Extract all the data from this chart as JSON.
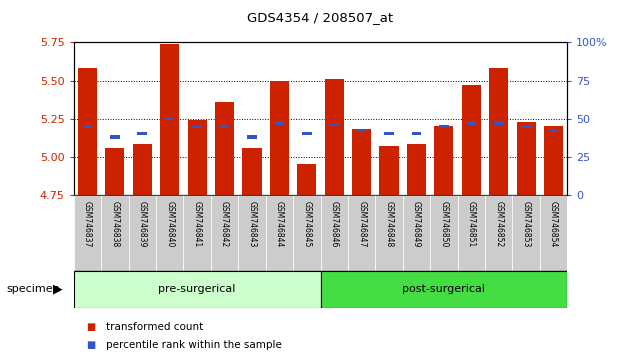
{
  "title": "GDS4354 / 208507_at",
  "samples": [
    "GSM746837",
    "GSM746838",
    "GSM746839",
    "GSM746840",
    "GSM746841",
    "GSM746842",
    "GSM746843",
    "GSM746844",
    "GSM746845",
    "GSM746846",
    "GSM746847",
    "GSM746848",
    "GSM746849",
    "GSM746850",
    "GSM746851",
    "GSM746852",
    "GSM746853",
    "GSM746854"
  ],
  "red_values": [
    5.58,
    5.06,
    5.08,
    5.74,
    5.24,
    5.36,
    5.06,
    5.5,
    4.95,
    5.51,
    5.18,
    5.07,
    5.08,
    5.2,
    5.47,
    5.58,
    5.23,
    5.2
  ],
  "blue_values": [
    5.2,
    5.13,
    5.15,
    5.25,
    5.2,
    5.2,
    5.13,
    5.22,
    5.15,
    5.21,
    5.17,
    5.15,
    5.15,
    5.2,
    5.22,
    5.22,
    5.2,
    5.17
  ],
  "pre_surgical_count": 9,
  "post_surgical_count": 9,
  "pre_color": "#ccffcc",
  "post_color": "#44dd44",
  "tick_bg_color": "#cccccc",
  "ymin": 4.75,
  "ymax": 5.75,
  "yticks": [
    4.75,
    5.0,
    5.25,
    5.5,
    5.75
  ],
  "right_yticks_vals": [
    0,
    25,
    50,
    75,
    100
  ],
  "right_yticks_labels": [
    "0",
    "25",
    "50",
    "75",
    "100%"
  ],
  "bar_color": "#cc2200",
  "blue_color": "#3355cc",
  "bg_color": "#ffffff",
  "pre_label": "pre-surgerical",
  "post_label": "post-surgerical",
  "specimen_label": "specimen",
  "legend_red_label": "transformed count",
  "legend_blue_label": "percentile rank within the sample"
}
